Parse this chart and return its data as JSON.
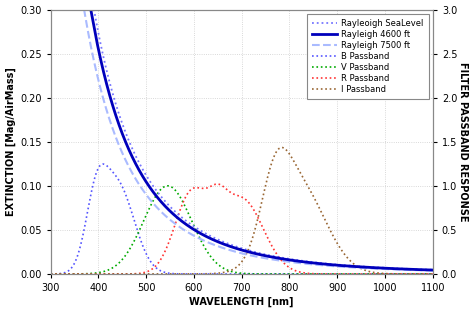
{
  "xlabel": "WAVELENGTH [nm]",
  "ylabel_left": "EXTINCTION [Mag/AirMass]",
  "ylabel_right": "FILTER PASSBAND RESPONSE",
  "xlim": [
    300,
    1100
  ],
  "ylim_left": [
    0.0,
    0.3
  ],
  "ylim_right": [
    0.0,
    3.0
  ],
  "rayleigh_sea_color": "#7777ff",
  "rayleigh_4600_color": "#0000bb",
  "rayleigh_7500_color": "#aabbff",
  "B_color": "#5555ff",
  "V_color": "#00aa00",
  "R_color": "#ff3333",
  "I_color": "#996633",
  "bg_color": "#ffffff",
  "grid_color": "#cccccc",
  "A_sea": 0.466,
  "A_4600": 0.435,
  "A_7500": 0.375
}
